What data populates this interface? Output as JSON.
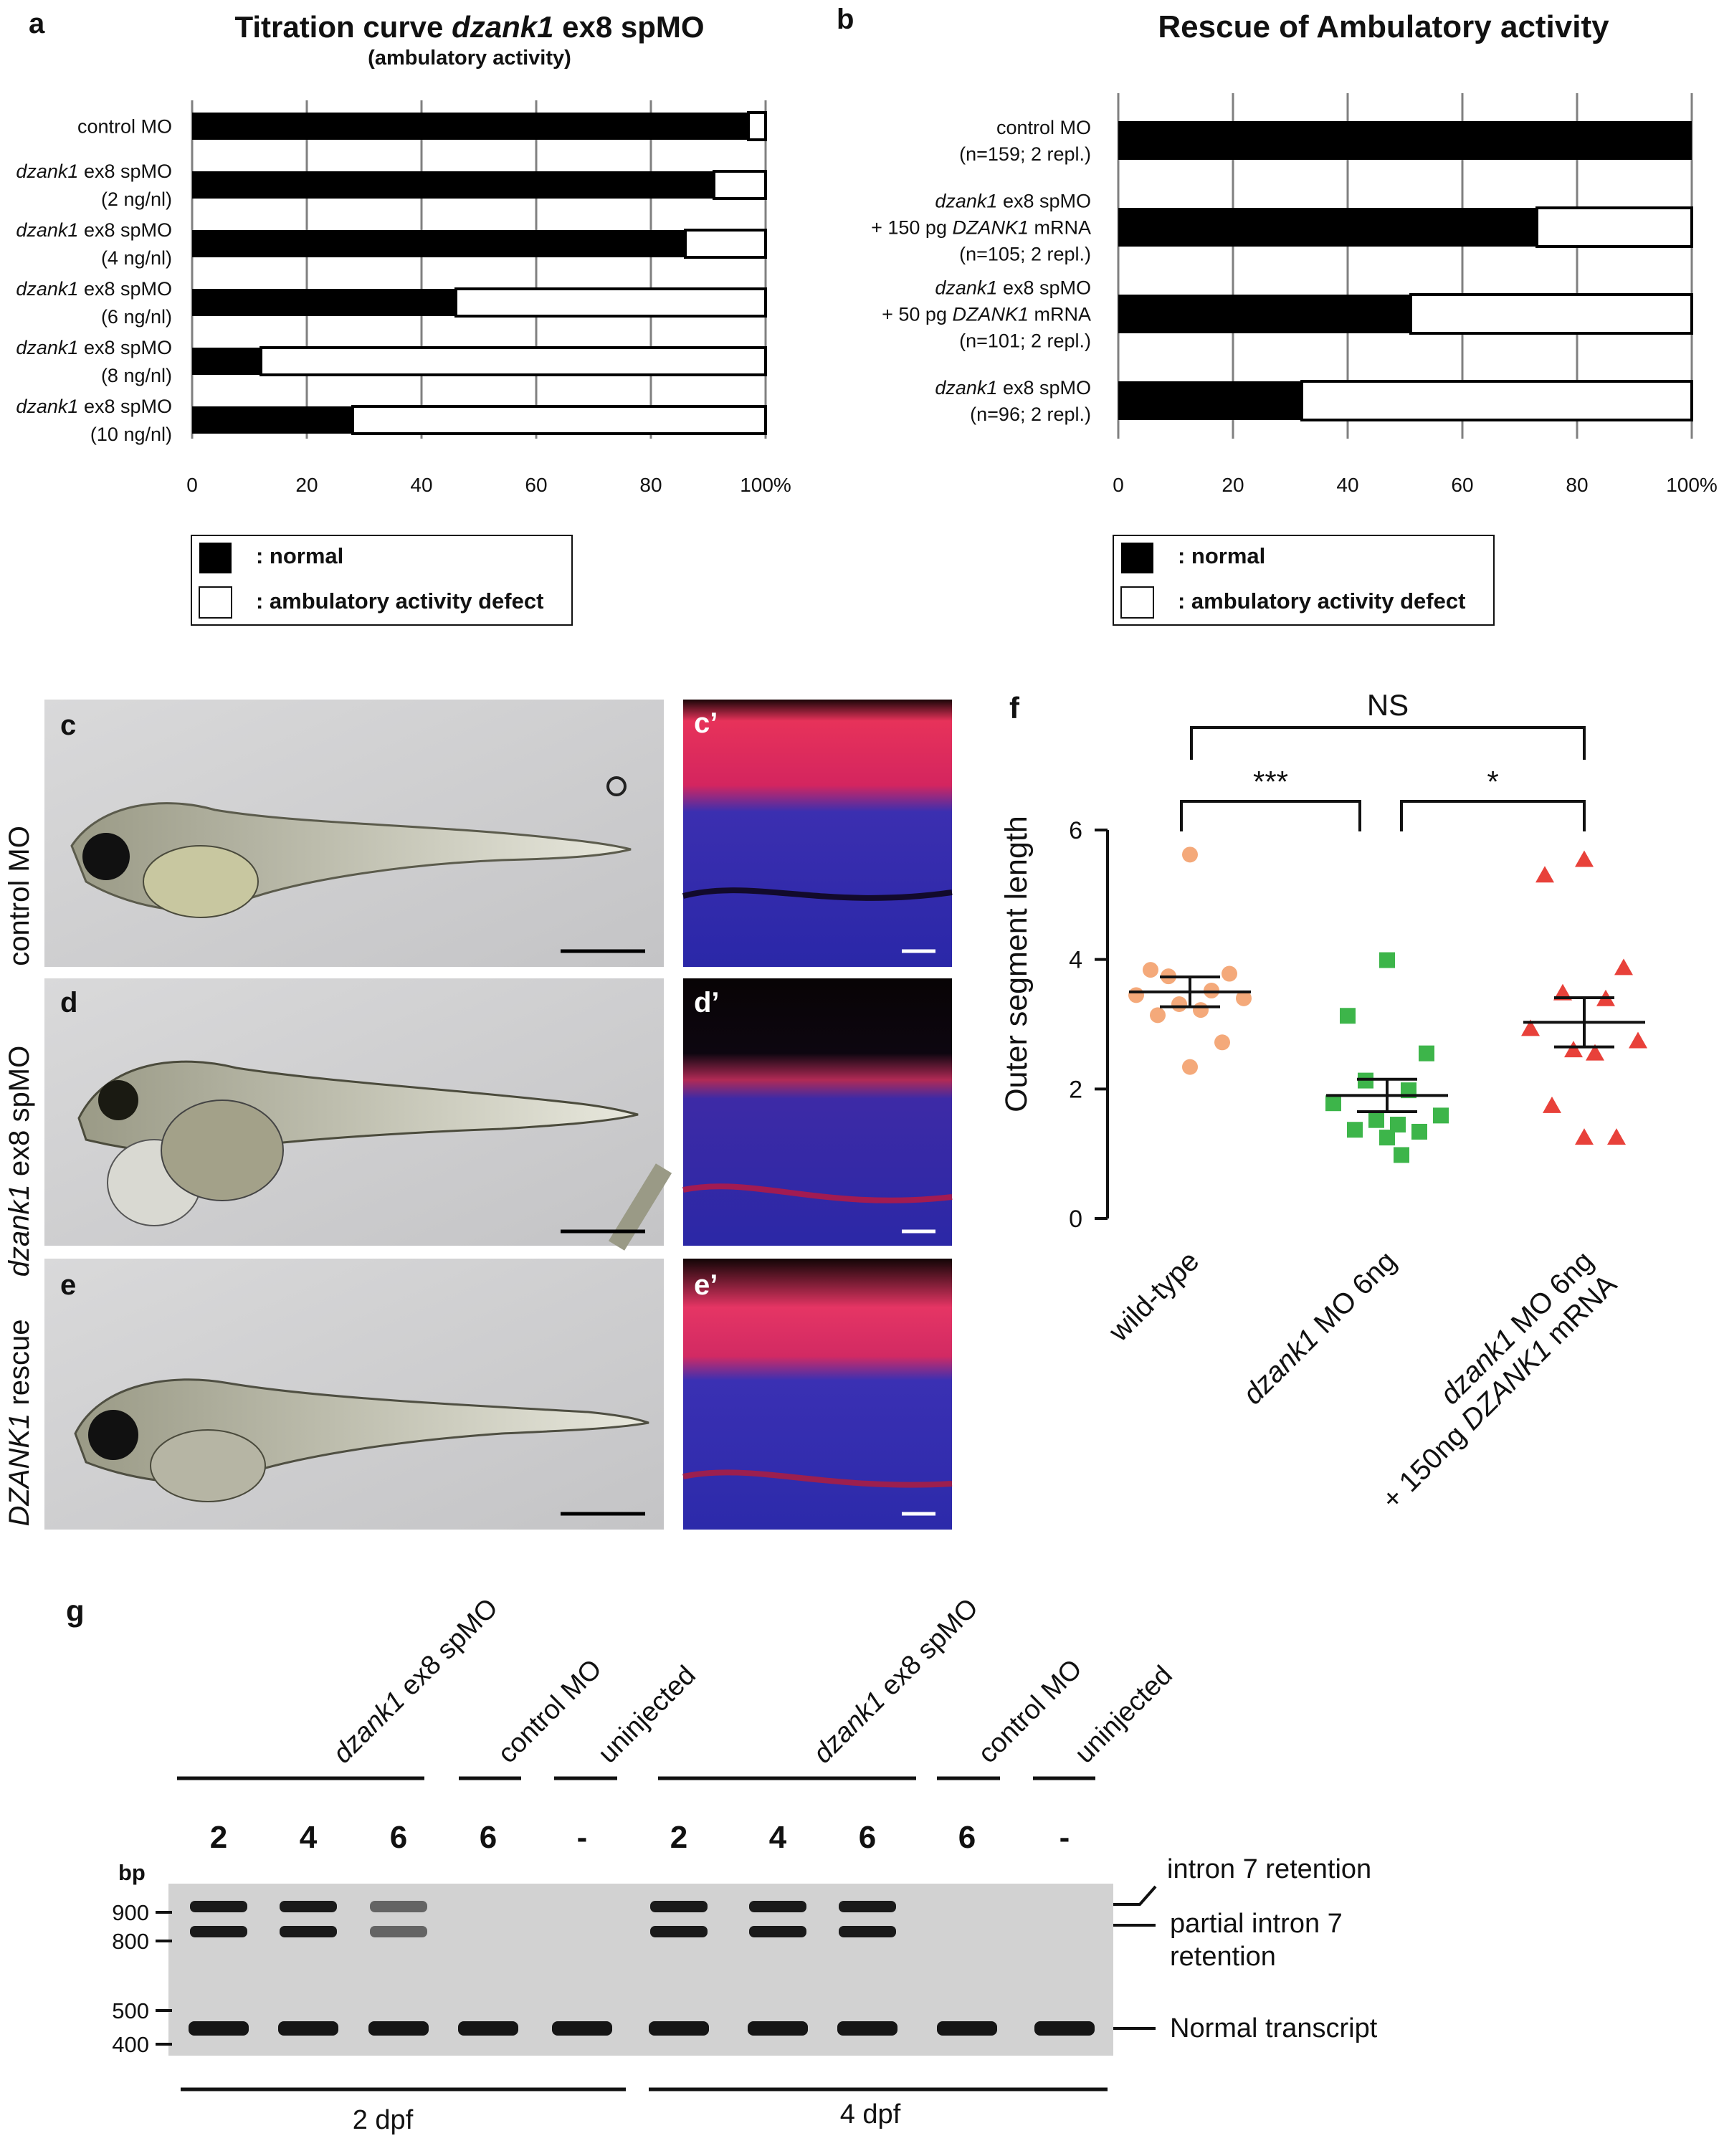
{
  "panel_letters": [
    "a",
    "b",
    "c",
    "c’",
    "d",
    "d’",
    "e",
    "e’",
    "f",
    "g"
  ],
  "chart_data": [
    {
      "panel": "a",
      "type": "bar",
      "orientation": "horizontal",
      "stacked": true,
      "title": "Titration curve dzank1 ex8 spMO",
      "subtitle": "(ambulatory activity)",
      "categories": [
        [
          "control MO"
        ],
        [
          "dzank1 ex8 spMO",
          "(2 ng/nl)"
        ],
        [
          "dzank1 ex8 spMO",
          "(4 ng/nl)"
        ],
        [
          "dzank1 ex8 spMO",
          "(6 ng/nl)"
        ],
        [
          "dzank1 ex8 spMO",
          "(8 ng/nl)"
        ],
        [
          "dzank1 ex8 spMO",
          "(10 ng/nl)"
        ]
      ],
      "series": [
        {
          "name": ": normal",
          "color": "#000000",
          "values": [
            97,
            91,
            86,
            46,
            12,
            28
          ]
        },
        {
          "name": ": ambulatory activity defect",
          "color": "#ffffff",
          "values": [
            3,
            9,
            14,
            54,
            88,
            72
          ]
        }
      ],
      "x_ticks": [
        "0",
        "20",
        "40",
        "60",
        "80",
        "100%"
      ],
      "xlim": [
        0,
        100
      ],
      "grid": true,
      "legend_position": "bottom"
    },
    {
      "panel": "b",
      "type": "bar",
      "orientation": "horizontal",
      "stacked": true,
      "title": "Rescue of Ambulatory activity",
      "categories": [
        [
          "control MO",
          "(n=159; 2 repl.)"
        ],
        [
          "dzank1 ex8 spMO",
          "+ 150 pg DZANK1 mRNA",
          "(n=105; 2 repl.)"
        ],
        [
          "dzank1 ex8 spMO",
          "+ 50 pg DZANK1 mRNA",
          "(n=101; 2 repl.)"
        ],
        [
          "dzank1 ex8 spMO",
          "(n=96; 2 repl.)"
        ]
      ],
      "series": [
        {
          "name": ": normal",
          "color": "#000000",
          "values": [
            100,
            73,
            51,
            32
          ]
        },
        {
          "name": ": ambulatory activity defect",
          "color": "#ffffff",
          "values": [
            0,
            27,
            49,
            68
          ]
        }
      ],
      "x_ticks": [
        "0",
        "20",
        "40",
        "60",
        "80",
        "100%"
      ],
      "xlim": [
        0,
        100
      ],
      "grid": true,
      "legend_position": "bottom"
    },
    {
      "panel": "f",
      "type": "scatter",
      "ylabel": "Outer segment length",
      "ylim": [
        0,
        6
      ],
      "y_ticks": [
        "0",
        "2",
        "4",
        "6"
      ],
      "categories": [
        "wild-type",
        "dzank1 MO 6ng",
        "dzank1 MO 6ng\n+ 150ng DZANK1 mRNA"
      ],
      "series": [
        {
          "group": "wild-type",
          "marker": "circle",
          "color": "#f4a97a",
          "values": [
            5.62,
            3.84,
            3.78,
            3.74,
            3.52,
            3.45,
            3.4,
            3.31,
            3.22,
            3.14,
            2.72,
            2.34
          ],
          "mean": 3.5,
          "sem": 0.23
        },
        {
          "group": "dzank1 MO 6ng",
          "marker": "square",
          "color": "#3db54a",
          "values": [
            3.99,
            3.13,
            2.55,
            2.13,
            1.98,
            1.78,
            1.59,
            1.52,
            1.45,
            1.37,
            1.34,
            1.25,
            0.98
          ],
          "mean": 1.9,
          "sem": 0.25
        },
        {
          "group": "dzank1 MO 6ng + 150ng DZANK1 mRNA",
          "marker": "triangle",
          "color": "#e8413a",
          "values": [
            5.54,
            5.3,
            3.87,
            3.48,
            3.39,
            2.93,
            2.74,
            2.6,
            2.55,
            1.74,
            1.25,
            1.25
          ],
          "mean": 3.03,
          "sem": 0.38
        }
      ],
      "significance": [
        {
          "from": 0,
          "to": 2,
          "label": "NS"
        },
        {
          "from": 0,
          "to": 1,
          "label": "***"
        },
        {
          "from": 1,
          "to": 2,
          "label": "*"
        }
      ]
    }
  ],
  "legend": {
    "normal": ": normal",
    "defect": ": ambulatory activity defect"
  },
  "images": {
    "row_labels": [
      "control MO",
      "dzank1 ex8 spMO",
      "DZANK1 rescue"
    ]
  },
  "gel": {
    "lane_groups": [
      "dzank1 ex8 spMO",
      "control MO",
      "uninjected",
      "dzank1 ex8 spMO",
      "control MO",
      "uninjected"
    ],
    "lane_labels": [
      "2",
      "4",
      "6",
      "6",
      "-",
      "2",
      "4",
      "6",
      "6",
      "-"
    ],
    "ladder_unit": "bp",
    "ladder": [
      "900",
      "800",
      "500",
      "400"
    ],
    "band_labels": [
      "intron 7 retention",
      "partial intron 7",
      "retention",
      "Normal transcript"
    ],
    "timepoints": [
      "2 dpf",
      "4 dpf"
    ]
  }
}
